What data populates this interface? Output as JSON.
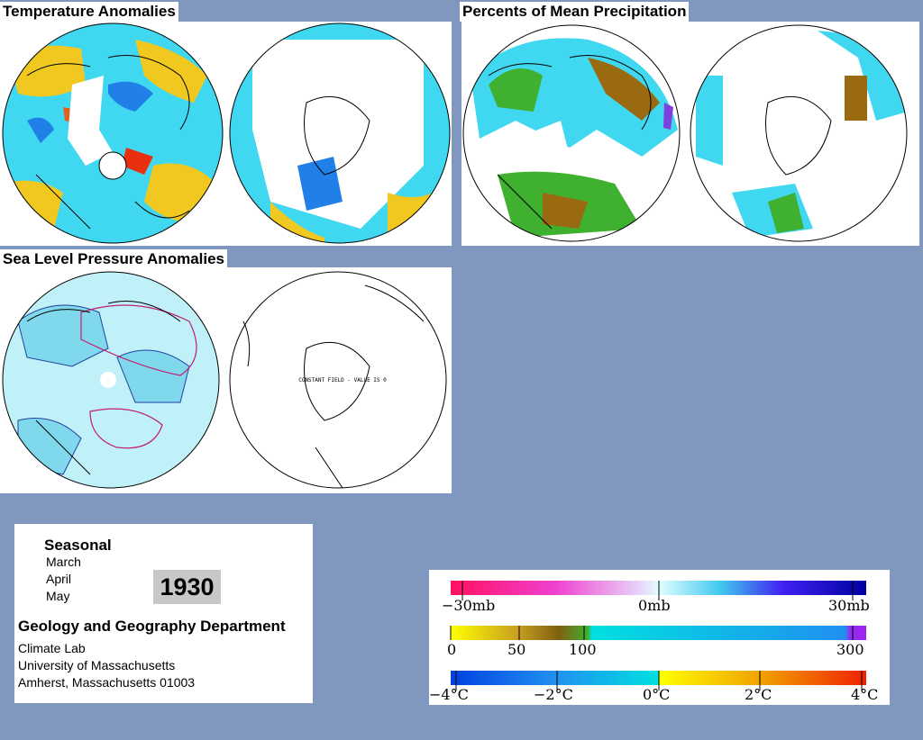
{
  "panels": {
    "temperature": {
      "title": "Temperature Anomalies"
    },
    "precipitation": {
      "title": "Percents of Mean Precipitation"
    },
    "pressure": {
      "title": "Sea Level Pressure Anomalies",
      "south_note": "CONSTANT FIELD - VALUE IS 0"
    }
  },
  "info": {
    "period": "Seasonal",
    "months": [
      "March",
      "April",
      "May"
    ],
    "year": "1930",
    "department": "Geology and Geography Department",
    "address_lines": [
      "Climate Lab",
      "University of Massachusetts",
      "Amherst, Massachusetts 01003"
    ]
  },
  "legend": {
    "pressure": {
      "labels": [
        "−30mb",
        "0mb",
        "30mb"
      ]
    },
    "precipitation": {
      "labels": [
        "0",
        "50",
        "100",
        "300"
      ]
    },
    "temperature": {
      "labels": [
        "−4°C",
        "−2°C",
        "0°C",
        "2°C",
        "4°C"
      ]
    }
  },
  "colors": {
    "background": "#8098c0",
    "anomaly_cyan": "#40d8f0",
    "anomaly_blue": "#2080e8",
    "anomaly_yellow": "#f0c820",
    "anomaly_red": "#e83010",
    "precip_green": "#40b030",
    "precip_brown": "#9a6a10",
    "pressure_light": "#c0f0f8",
    "pressure_mid": "#80d8ec",
    "pressure_contour": "#c02070"
  }
}
